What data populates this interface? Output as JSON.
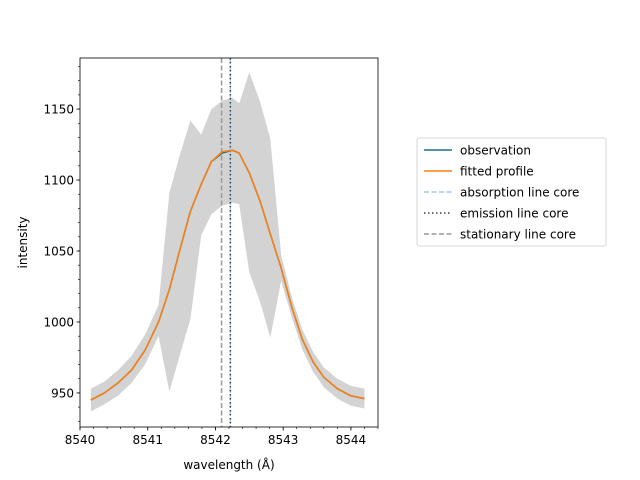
{
  "chart_data": {
    "type": "line",
    "xlabel": "wavelength (Å)",
    "ylabel": "intensity",
    "xlim": [
      8540.0,
      8544.4
    ],
    "ylim": [
      926,
      1186
    ],
    "x_ticks": [
      8540,
      8541,
      8542,
      8543,
      8544
    ],
    "y_ticks": [
      950,
      1000,
      1050,
      1100,
      1150
    ],
    "x_minor_step": 0.2,
    "y_minor_step": 10,
    "grid": false,
    "legend_position": "outside-right",
    "x": [
      8540.16,
      8540.36,
      8540.56,
      8540.76,
      8540.96,
      8541.16,
      8541.32,
      8541.47,
      8541.63,
      8541.79,
      8541.94,
      8542.1,
      8542.25,
      8542.35,
      8542.5,
      8542.66,
      8542.81,
      8542.97,
      8543.13,
      8543.28,
      8543.44,
      8543.6,
      8543.8,
      8544.0,
      8544.2
    ],
    "series": [
      {
        "name": "observation",
        "color": "#1a6f8d",
        "values": [
          945,
          950,
          957,
          966,
          980,
          1000,
          1023,
          1050,
          1078,
          1097,
          1113,
          1119,
          1121,
          1119,
          1105,
          1085,
          1062,
          1038,
          1010,
          988,
          972,
          961,
          953,
          948,
          946
        ]
      },
      {
        "name": "fitted profile",
        "color": "#ff7f0e",
        "values": [
          945,
          950,
          957,
          966,
          980,
          1000,
          1023,
          1050,
          1078,
          1097,
          1113,
          1120,
          1121,
          1119,
          1105,
          1085,
          1062,
          1038,
          1010,
          988,
          972,
          961,
          953,
          948,
          946
        ]
      }
    ],
    "uncertainty_band": {
      "color": "#d3d3d3",
      "upper": [
        953,
        958,
        966,
        976,
        991,
        1012,
        1091,
        1117,
        1142,
        1132,
        1150,
        1156,
        1158,
        1154,
        1176,
        1155,
        1129,
        1047,
        1017,
        995,
        979,
        968,
        960,
        955,
        953
      ],
      "lower": [
        937,
        942,
        948,
        957,
        970,
        990,
        951,
        976,
        1002,
        1061,
        1076,
        1082,
        1084,
        1083,
        1035,
        1014,
        989,
        1029,
        1003,
        981,
        965,
        954,
        946,
        941,
        939
      ]
    },
    "vertical_lines": [
      {
        "name": "absorption line core",
        "x": 8542.22,
        "color": "#a6c8e6",
        "style": "dashed"
      },
      {
        "name": "emission line core",
        "x": 8542.22,
        "color": "#404040",
        "style": "dotted"
      },
      {
        "name": "stationary line core",
        "x": 8542.09,
        "color": "#999999",
        "style": "dashed"
      }
    ]
  }
}
